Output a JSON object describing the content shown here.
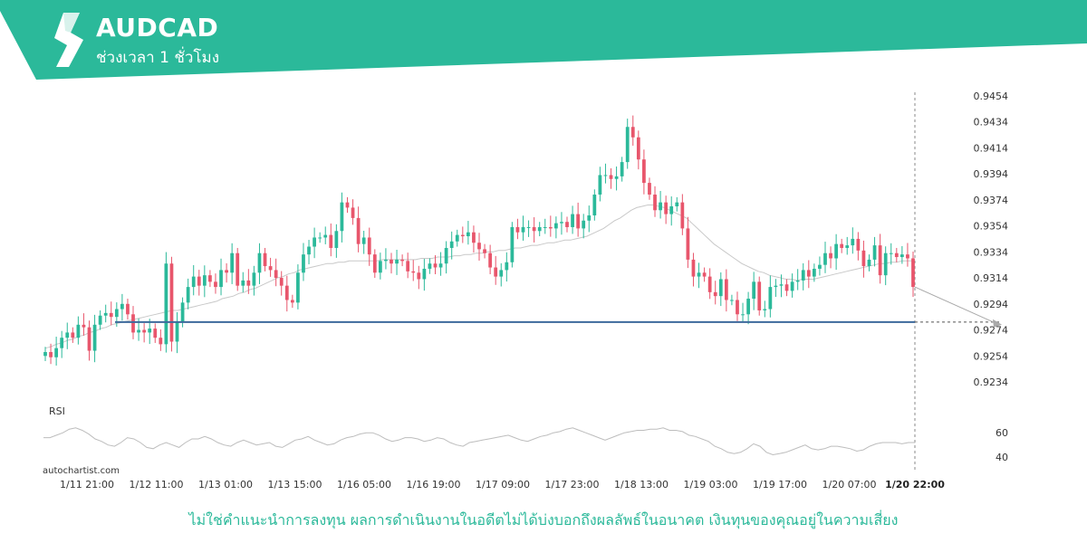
{
  "header": {
    "symbol": "AUDCAD",
    "timeframe": "ช่วงเวลา 1 ชั่วโมง",
    "brand_color": "#2bb99a"
  },
  "footer": {
    "disclaimer": "ไม่ใช่คำแนะนำการลงทุน ผลการดำเนินงานในอดีตไม่ได้บ่งบอกถึงผลลัพธ์ในอนาคต เงินทุนของคุณอยู่ในความเสี่ยง",
    "watermark": "autochartist.com"
  },
  "chart_data": {
    "type": "candlestick",
    "price_axis": {
      "ticks": [
        "0.9454",
        "0.9434",
        "0.9414",
        "0.9394",
        "0.9374",
        "0.9354",
        "0.9334",
        "0.9314",
        "0.9294",
        "0.9274",
        "0.9254",
        "0.9234"
      ],
      "range": [
        0.9225,
        0.9458
      ]
    },
    "time_axis": {
      "labels": [
        "1/11 21:00",
        "1/12 11:00",
        "1/13 01:00",
        "1/13 15:00",
        "1/16 05:00",
        "1/16 19:00",
        "1/17 09:00",
        "1/17 23:00",
        "1/18 13:00",
        "1/19 03:00",
        "1/19 17:00",
        "1/20 07:00"
      ],
      "current_label": "1/20 22:00"
    },
    "support_level": 0.928,
    "close_series": [
      0.9257,
      0.9253,
      0.926,
      0.9268,
      0.9272,
      0.9268,
      0.9278,
      0.9276,
      0.9258,
      0.9278,
      0.9285,
      0.9287,
      0.9284,
      0.929,
      0.9294,
      0.9286,
      0.9272,
      0.9274,
      0.9272,
      0.9275,
      0.9268,
      0.9263,
      0.9325,
      0.9265,
      0.928,
      0.9295,
      0.9307,
      0.9315,
      0.9308,
      0.9316,
      0.9311,
      0.9307,
      0.932,
      0.9318,
      0.9333,
      0.9308,
      0.9312,
      0.9308,
      0.9318,
      0.9333,
      0.9323,
      0.932,
      0.9314,
      0.9308,
      0.9297,
      0.9295,
      0.9318,
      0.9332,
      0.9338,
      0.9345,
      0.9345,
      0.9347,
      0.9337,
      0.935,
      0.9372,
      0.9368,
      0.936,
      0.934,
      0.9345,
      0.9332,
      0.9318,
      0.9327,
      0.9328,
      0.9325,
      0.9328,
      0.9327,
      0.9319,
      0.9318,
      0.9313,
      0.9321,
      0.9325,
      0.9322,
      0.9325,
      0.9337,
      0.9342,
      0.9347,
      0.9346,
      0.9349,
      0.9341,
      0.9336,
      0.9333,
      0.9322,
      0.9315,
      0.932,
      0.9326,
      0.9353,
      0.9349,
      0.9353,
      0.9353,
      0.935,
      0.9353,
      0.9353,
      0.9352,
      0.9356,
      0.9357,
      0.9353,
      0.9363,
      0.9352,
      0.9358,
      0.9362,
      0.9378,
      0.9393,
      0.9393,
      0.939,
      0.9392,
      0.9403,
      0.943,
      0.9422,
      0.9405,
      0.9387,
      0.9378,
      0.9366,
      0.9372,
      0.9363,
      0.9369,
      0.9372,
      0.9352,
      0.9328,
      0.9315,
      0.9318,
      0.9315,
      0.9303,
      0.93,
      0.9313,
      0.9297,
      0.9297,
      0.9286,
      0.9286,
      0.9298,
      0.9311,
      0.9289,
      0.929,
      0.9307,
      0.9308,
      0.9309,
      0.9304,
      0.9311,
      0.9312,
      0.932,
      0.9315,
      0.9321,
      0.9324,
      0.9333,
      0.9329,
      0.934,
      0.9337,
      0.9339,
      0.9344,
      0.9335,
      0.9323,
      0.9328,
      0.9339,
      0.9316,
      0.9333,
      0.9333,
      0.933,
      0.9332,
      0.9329,
      0.9307
    ],
    "ma_series": [
      0.926,
      0.9261,
      0.9263,
      0.9264,
      0.9266,
      0.9267,
      0.9269,
      0.927,
      0.9272,
      0.9273,
      0.9275,
      0.9276,
      0.9278,
      0.9279,
      0.928,
      0.9281,
      0.9282,
      0.9283,
      0.9284,
      0.9285,
      0.9286,
      0.9287,
      0.9288,
      0.9289,
      0.9289,
      0.929,
      0.9291,
      0.9292,
      0.9293,
      0.9294,
      0.9295,
      0.9296,
      0.9298,
      0.9299,
      0.93,
      0.9302,
      0.9303,
      0.9305,
      0.9306,
      0.9308,
      0.931,
      0.9312,
      0.9314,
      0.9315,
      0.9317,
      0.9318,
      0.932,
      0.9321,
      0.9322,
      0.9323,
      0.9324,
      0.9325,
      0.9325,
      0.9326,
      0.9326,
      0.9327,
      0.9327,
      0.9327,
      0.9327,
      0.9327,
      0.9327,
      0.9328,
      0.9328,
      0.9328,
      0.9328,
      0.9328,
      0.9328,
      0.9328,
      0.9329,
      0.9329,
      0.9329,
      0.933,
      0.933,
      0.933,
      0.9331,
      0.9331,
      0.9332,
      0.9332,
      0.9333,
      0.9333,
      0.9334,
      0.9334,
      0.9335,
      0.9335,
      0.9336,
      0.9337,
      0.9337,
      0.9338,
      0.9339,
      0.9339,
      0.934,
      0.9341,
      0.9341,
      0.9342,
      0.9343,
      0.9343,
      0.9344,
      0.9345,
      0.9346,
      0.9348,
      0.935,
      0.9352,
      0.9355,
      0.9358,
      0.936,
      0.9363,
      0.9366,
      0.9368,
      0.9369,
      0.937,
      0.937,
      0.9369,
      0.9368,
      0.9366,
      0.9364,
      0.9362,
      0.936,
      0.9356,
      0.9352,
      0.9348,
      0.9344,
      0.934,
      0.9337,
      0.9334,
      0.9331,
      0.9328,
      0.9325,
      0.9323,
      0.9321,
      0.9319,
      0.9318,
      0.9316,
      0.9315,
      0.9314,
      0.9313,
      0.9313,
      0.9312,
      0.9313,
      0.9313,
      0.9313,
      0.9314,
      0.9315,
      0.9316,
      0.9317,
      0.9318,
      0.9319,
      0.932,
      0.9321,
      0.9322,
      0.9323,
      0.9324,
      0.9325,
      0.9325,
      0.9326,
      0.9326,
      0.9327,
      0.9327,
      0.9327
    ],
    "forecast_end": 0.9278,
    "rsi": {
      "label": "RSI",
      "ticks": [
        "60",
        "40"
      ],
      "range": [
        35,
        72
      ],
      "values": [
        56,
        56,
        58,
        60,
        63,
        64,
        62,
        59,
        55,
        53,
        50,
        49,
        52,
        56,
        55,
        52,
        48,
        47,
        50,
        52,
        50,
        48,
        52,
        55,
        55,
        57,
        55,
        52,
        50,
        49,
        52,
        54,
        52,
        50,
        51,
        52,
        49,
        48,
        51,
        54,
        55,
        57,
        54,
        52,
        50,
        51,
        54,
        56,
        57,
        59,
        60,
        60,
        58,
        55,
        53,
        54,
        56,
        56,
        55,
        53,
        54,
        56,
        55,
        52,
        50,
        49,
        52,
        53,
        54,
        55,
        56,
        57,
        58,
        56,
        54,
        53,
        55,
        57,
        58,
        60,
        61,
        63,
        64,
        62,
        60,
        58,
        56,
        54,
        56,
        58,
        60,
        61,
        62,
        62,
        63,
        63,
        64,
        62,
        62,
        61,
        58,
        57,
        55,
        53,
        49,
        47,
        44,
        43,
        44,
        47,
        51,
        49,
        44,
        42,
        43,
        44,
        46,
        48,
        50,
        47,
        46,
        47,
        49,
        49,
        48,
        47,
        45,
        46,
        49,
        51,
        52,
        52,
        52,
        51,
        52,
        52
      ],
      "color": "#bdbdbd"
    },
    "colors": {
      "up": "#2bb99a",
      "down": "#e8566c",
      "support": "#3d6a9c",
      "ma": "#c8c8c8"
    }
  }
}
